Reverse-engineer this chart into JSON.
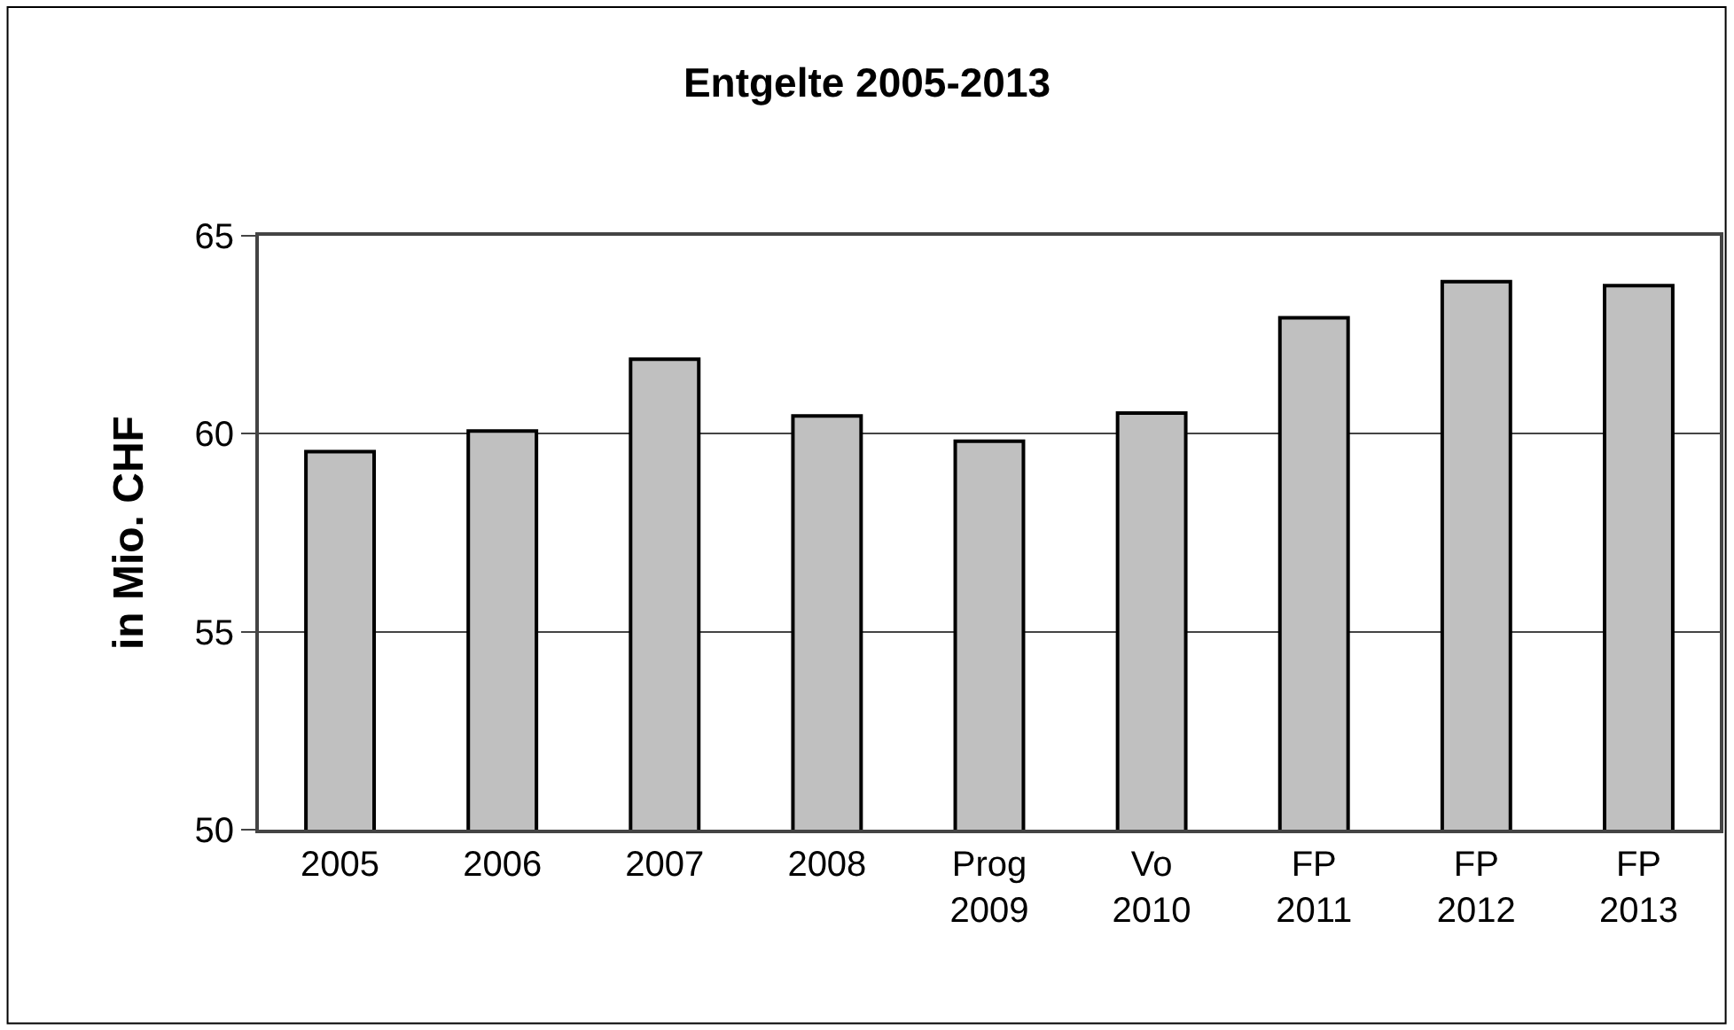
{
  "chart_data": {
    "type": "bar",
    "title": "Entgelte 2005-2013",
    "ylabel": "in Mio. CHF",
    "categories": [
      "2005",
      "2006",
      "2007",
      "2008",
      "Prog\n2009",
      "Vo\n2010",
      "FP\n2011",
      "FP\n2012",
      "FP\n2013"
    ],
    "values": [
      59.55,
      60.07,
      61.88,
      60.45,
      59.81,
      60.52,
      62.93,
      63.84,
      63.74
    ],
    "color": "#c0c0c0",
    "ylim": [
      50,
      65
    ],
    "yticks": [
      50,
      55,
      60,
      65
    ],
    "grid": "y"
  }
}
